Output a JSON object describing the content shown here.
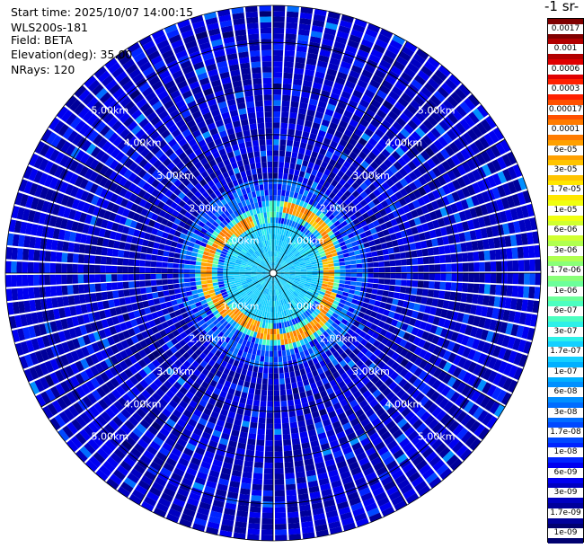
{
  "info": {
    "start_time": "Start time: 2025/10/07 14:00:15",
    "device": "WLS200s-181",
    "field": "Field: BETA",
    "elevation": "Elevation(deg): 35.00",
    "nrays": "NRays: 120"
  },
  "colorbar": {
    "title": "-1 sr-",
    "labels": [
      "0.0017",
      "0.001",
      "0.0006",
      "0.0003",
      "0.00017",
      "0.0001",
      "6e-05",
      "3e-05",
      "1.7e-05",
      "1e-05",
      "6e-06",
      "3e-06",
      "1.7e-06",
      "1e-06",
      "6e-07",
      "3e-07",
      "1.7e-07",
      "1e-07",
      "6e-08",
      "3e-08",
      "1.7e-08",
      "1e-08",
      "6e-09",
      "3e-09",
      "1.7e-09",
      "1e-09"
    ],
    "colors": [
      "#800000",
      "#b20000",
      "#e00000",
      "#ff2000",
      "#ff5000",
      "#ff7b00",
      "#ffa000",
      "#ffc400",
      "#ffe600",
      "#f0ff10",
      "#d0ff30",
      "#b0ff50",
      "#8aff78",
      "#6cff9a",
      "#4cffc0",
      "#2ef0e8",
      "#14d0ff",
      "#00b0ff",
      "#0090ff",
      "#006cff",
      "#0048ff",
      "#0024ff",
      "#0000f0",
      "#0000c0",
      "#00009a",
      "#000070"
    ]
  },
  "chart_data": {
    "type": "heatmap",
    "projection": "ppi-polar",
    "field": "BETA",
    "elevation_deg": 35.0,
    "n_rays": 120,
    "range_rings_km": [
      1.0,
      2.0,
      3.0,
      4.0,
      5.0
    ],
    "ring_labels": [
      "1.00km",
      "2.00km",
      "3.00km",
      "4.00km",
      "5.00km"
    ],
    "max_range_km": 5.8,
    "radial_lines_deg": [
      0,
      30,
      60,
      90,
      120,
      150,
      180,
      210,
      240,
      270,
      300,
      330
    ],
    "colorscale": "jet",
    "color_limits": [
      1e-09,
      0.0017
    ],
    "enhanced_ring_km": [
      1.15,
      1.55
    ],
    "enhanced_ring_values": [
      3e-05,
      0.0001
    ],
    "near_field_values": [
      1e-07,
      1.7e-07
    ],
    "far_field_values": [
      1.7e-09,
      1e-08
    ],
    "grid": true
  }
}
